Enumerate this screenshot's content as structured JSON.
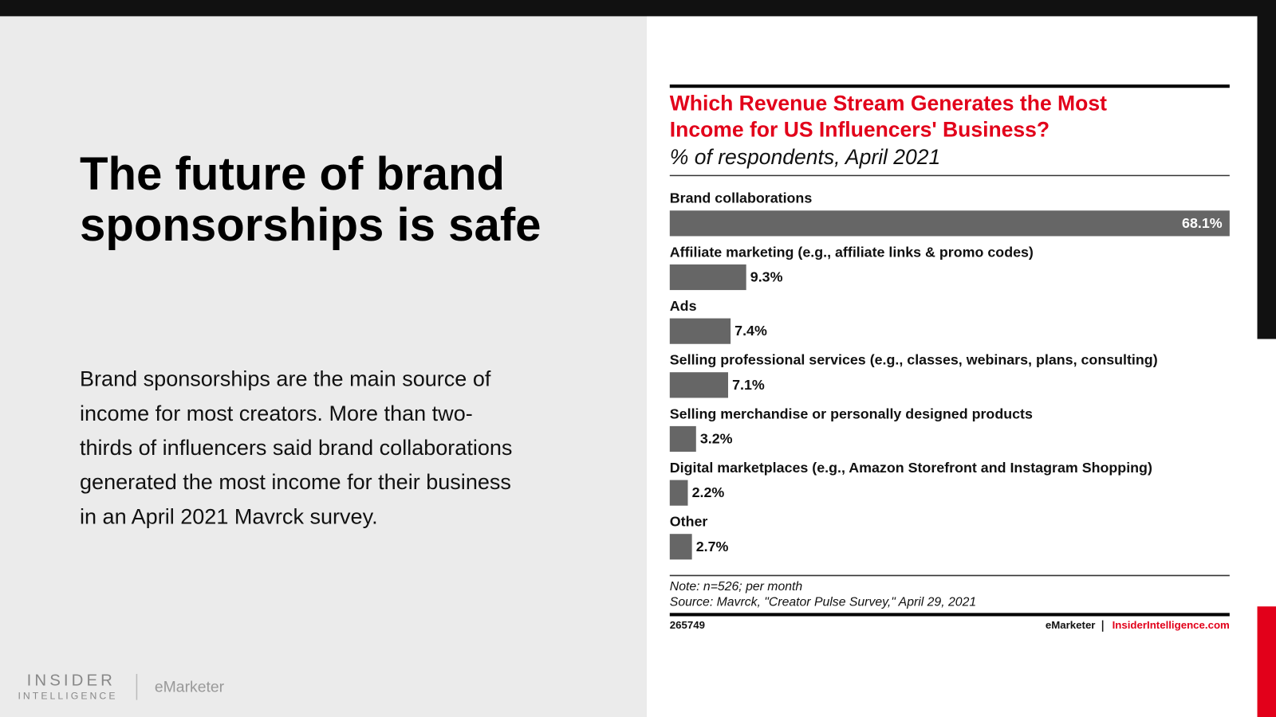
{
  "slide": {
    "title_lines": [
      "The future of brand",
      "sponsorships is safe"
    ],
    "body_lines": [
      "Brand sponsorships are the main source of",
      "income for most creators. More than two-",
      "thirds of influencers said brand collaborations",
      "generated the most income for their business",
      "in an April 2021 Mavrck survey."
    ],
    "logo_top": "INSIDER",
    "logo_bottom": "INTELLIGENCE",
    "logo_brand": "eMarketer"
  },
  "chart_data": {
    "type": "bar",
    "orientation": "horizontal",
    "title_lines": [
      "Which Revenue Stream Generates the Most",
      "Income for US Influencers' Business?"
    ],
    "subtitle": "% of respondents, April 2021",
    "categories": [
      "Brand collaborations",
      "Affiliate marketing (e.g., affiliate links & promo codes)",
      "Ads",
      "Selling professional services (e.g., classes, webinars, plans, consulting)",
      "Selling merchandise or personally designed products",
      "Digital marketplaces (e.g., Amazon Storefront and Instagram Shopping)",
      "Other"
    ],
    "values": [
      68.1,
      9.3,
      7.4,
      7.1,
      3.2,
      2.2,
      2.7
    ],
    "value_labels": [
      "68.1%",
      "9.3%",
      "7.4%",
      "7.1%",
      "3.2%",
      "2.2%",
      "2.7%"
    ],
    "color": "#666666",
    "note": "Note: n=526; per month",
    "source": "Source: Mavrck, \"Creator Pulse Survey,\" April 29, 2021",
    "chart_id": "265749",
    "footer_brand": "eMarketer",
    "footer_site": "InsiderIntelligence.com"
  }
}
